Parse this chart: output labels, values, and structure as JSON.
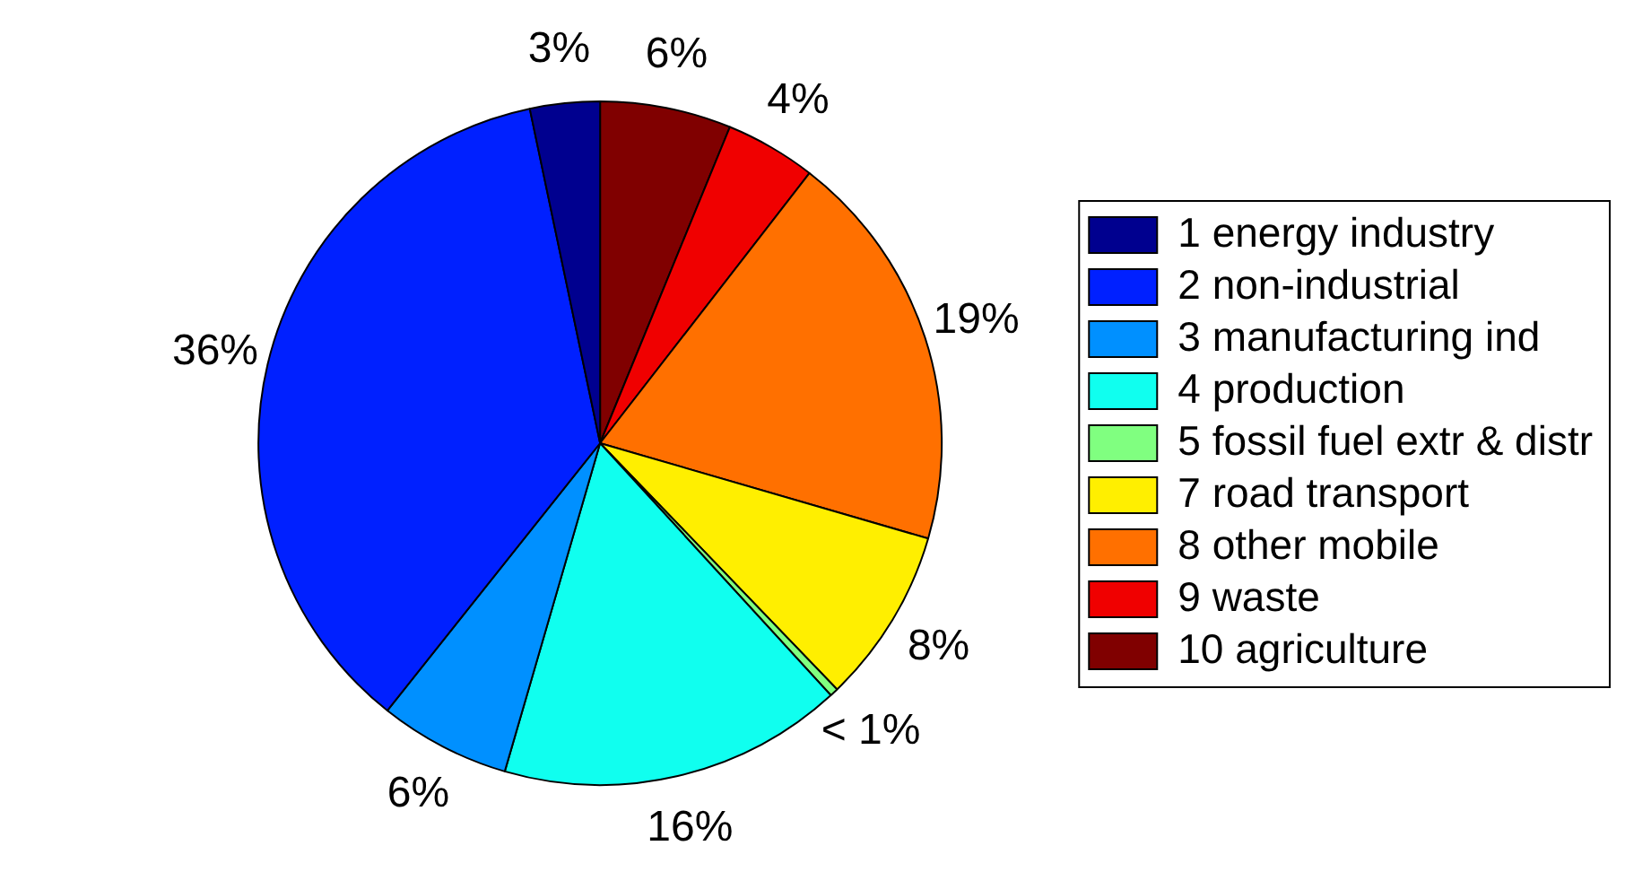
{
  "chart_data": {
    "type": "pie",
    "categories": [
      "1 energy industry",
      "2 non-industrial",
      "3 manufacturing ind",
      "4 production",
      "5 fossil fuel extr & distr",
      "7 road transport",
      "8 other mobile",
      "9 waste",
      "10 agriculture"
    ],
    "values": [
      3.3,
      36.0,
      6.2,
      16.3,
      0.4,
      8.3,
      19.0,
      4.3,
      6.2
    ],
    "value_labels": [
      "3%",
      "36%",
      "6%",
      "16%",
      "< 1%",
      "8%",
      "19%",
      "4%",
      "6%"
    ],
    "colors": [
      "#00008f",
      "#0020ff",
      "#0090ff",
      "#10ffef",
      "#80ff80",
      "#ffef00",
      "#ff7000",
      "#f00000",
      "#800000"
    ],
    "legend": "right"
  }
}
